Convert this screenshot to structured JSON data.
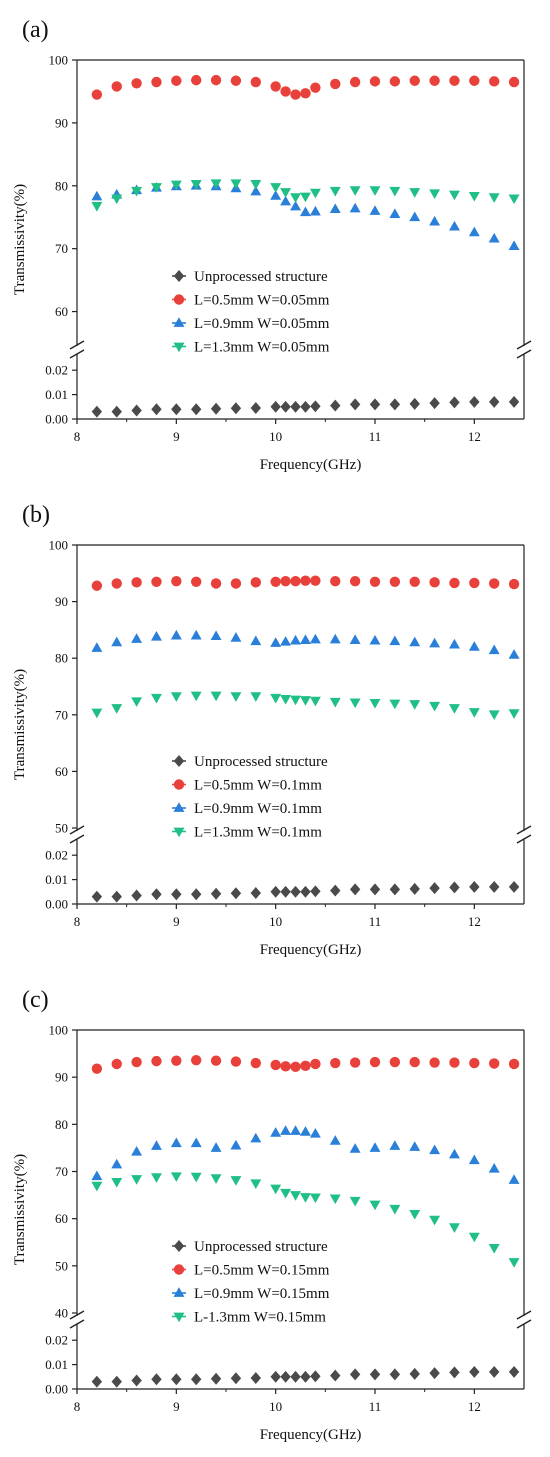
{
  "chart_data": [
    {
      "type": "scatter",
      "panel_label": "(a)",
      "xlabel": "Frequency(GHz)",
      "ylabel": "Transmissivity(%)",
      "xlim": [
        8,
        12.5
      ],
      "x_ticks": [
        "8",
        "9",
        "10",
        "11",
        "12"
      ],
      "y_upper_range": [
        55,
        100
      ],
      "y_upper_ticks": [
        "60",
        "70",
        "80",
        "90",
        "100"
      ],
      "y_lower_range": [
        0,
        0.025
      ],
      "y_lower_ticks": [
        "0.00",
        "0.01",
        "0.02"
      ],
      "axis_break": true,
      "legend_position": "lower-center",
      "x": [
        8.2,
        8.4,
        8.6,
        8.8,
        9.0,
        9.2,
        9.4,
        9.6,
        9.8,
        10.0,
        10.1,
        10.2,
        10.3,
        10.4,
        10.6,
        10.8,
        11.0,
        11.2,
        11.4,
        11.6,
        11.8,
        12.0,
        12.2,
        12.4
      ],
      "series": [
        {
          "name": "Unprocessed structure",
          "marker": "diamond",
          "color": "#4a4a4a",
          "values": [
            0.003,
            0.003,
            0.0035,
            0.004,
            0.004,
            0.004,
            0.0042,
            0.0044,
            0.0045,
            0.005,
            0.005,
            0.005,
            0.005,
            0.0052,
            0.0055,
            0.006,
            0.006,
            0.006,
            0.0062,
            0.0065,
            0.0068,
            0.007,
            0.007,
            0.007
          ]
        },
        {
          "name": "L=0.5mm W=0.05mm",
          "marker": "circle",
          "color": "#e8403a",
          "values": [
            94.5,
            95.8,
            96.3,
            96.5,
            96.7,
            96.8,
            96.8,
            96.7,
            96.5,
            95.8,
            95.0,
            94.5,
            94.7,
            95.6,
            96.2,
            96.5,
            96.6,
            96.6,
            96.7,
            96.7,
            96.7,
            96.7,
            96.6,
            96.5
          ]
        },
        {
          "name": "L=0.9mm W=0.05mm",
          "marker": "triangle-up",
          "color": "#2a7fd8",
          "values": [
            78.3,
            78.6,
            79.3,
            79.7,
            79.9,
            80.0,
            79.9,
            79.6,
            79.1,
            78.4,
            77.5,
            76.7,
            75.8,
            75.9,
            76.3,
            76.4,
            76.0,
            75.5,
            75.0,
            74.3,
            73.5,
            72.6,
            71.6,
            70.4
          ]
        },
        {
          "name": "L=1.3mm W=0.05mm",
          "marker": "triangle-down",
          "color": "#1fbf86",
          "values": [
            76.8,
            78.0,
            79.2,
            79.8,
            80.2,
            80.3,
            80.4,
            80.4,
            80.3,
            79.8,
            79.0,
            78.2,
            78.3,
            78.9,
            79.2,
            79.3,
            79.3,
            79.2,
            79.0,
            78.8,
            78.6,
            78.4,
            78.2,
            78.0
          ]
        }
      ]
    },
    {
      "type": "scatter",
      "panel_label": "(b)",
      "xlabel": "Frequency(GHz)",
      "ylabel": "Transmissivity(%)",
      "xlim": [
        8,
        12.5
      ],
      "x_ticks": [
        "8",
        "9",
        "10",
        "11",
        "12"
      ],
      "y_upper_range": [
        50,
        100
      ],
      "y_upper_ticks": [
        "50",
        "60",
        "70",
        "80",
        "90",
        "100"
      ],
      "y_lower_range": [
        0,
        0.025
      ],
      "y_lower_ticks": [
        "0.00",
        "0.01",
        "0.02"
      ],
      "axis_break": true,
      "legend_position": "lower-center",
      "x": [
        8.2,
        8.4,
        8.6,
        8.8,
        9.0,
        9.2,
        9.4,
        9.6,
        9.8,
        10.0,
        10.1,
        10.2,
        10.3,
        10.4,
        10.6,
        10.8,
        11.0,
        11.2,
        11.4,
        11.6,
        11.8,
        12.0,
        12.2,
        12.4
      ],
      "series": [
        {
          "name": "Unprocessed structure",
          "marker": "diamond",
          "color": "#4a4a4a",
          "values": [
            0.003,
            0.003,
            0.0035,
            0.004,
            0.004,
            0.004,
            0.0042,
            0.0044,
            0.0045,
            0.005,
            0.005,
            0.005,
            0.005,
            0.0052,
            0.0055,
            0.006,
            0.006,
            0.006,
            0.0062,
            0.0065,
            0.0068,
            0.007,
            0.007,
            0.007
          ]
        },
        {
          "name": "L=0.5mm W=0.1mm",
          "marker": "circle",
          "color": "#e8403a",
          "values": [
            92.8,
            93.2,
            93.4,
            93.5,
            93.6,
            93.5,
            93.2,
            93.2,
            93.4,
            93.5,
            93.6,
            93.6,
            93.7,
            93.7,
            93.6,
            93.6,
            93.5,
            93.5,
            93.5,
            93.4,
            93.3,
            93.3,
            93.2,
            93.1
          ]
        },
        {
          "name": "L=0.9mm W=0.1mm",
          "marker": "triangle-up",
          "color": "#2a7fd8",
          "values": [
            81.8,
            82.8,
            83.4,
            83.8,
            84.0,
            84.0,
            83.9,
            83.6,
            83.0,
            82.7,
            82.9,
            83.1,
            83.2,
            83.3,
            83.3,
            83.2,
            83.1,
            83.0,
            82.8,
            82.6,
            82.4,
            82.0,
            81.4,
            80.6
          ]
        },
        {
          "name": "L=1.3mm W=0.1mm",
          "marker": "triangle-down",
          "color": "#1fbf86",
          "values": [
            70.4,
            71.2,
            72.4,
            73.0,
            73.3,
            73.4,
            73.4,
            73.3,
            73.3,
            73.0,
            72.8,
            72.7,
            72.6,
            72.5,
            72.3,
            72.2,
            72.1,
            72.0,
            71.9,
            71.6,
            71.2,
            70.5,
            70.1,
            70.3
          ]
        }
      ]
    },
    {
      "type": "scatter",
      "panel_label": "(c)",
      "xlabel": "Frequency(GHz)",
      "ylabel": "Transmissivity(%)",
      "xlim": [
        8,
        12.5
      ],
      "x_ticks": [
        "8",
        "9",
        "10",
        "11",
        "12"
      ],
      "y_upper_range": [
        40,
        100
      ],
      "y_upper_ticks": [
        "40",
        "50",
        "60",
        "70",
        "80",
        "90",
        "100"
      ],
      "y_lower_range": [
        0,
        0.025
      ],
      "y_lower_ticks": [
        "0.00",
        "0.01",
        "0.02"
      ],
      "axis_break": true,
      "legend_position": "lower-center",
      "x": [
        8.2,
        8.4,
        8.6,
        8.8,
        9.0,
        9.2,
        9.4,
        9.6,
        9.8,
        10.0,
        10.1,
        10.2,
        10.3,
        10.4,
        10.6,
        10.8,
        11.0,
        11.2,
        11.4,
        11.6,
        11.8,
        12.0,
        12.2,
        12.4
      ],
      "series": [
        {
          "name": "Unprocessed structure",
          "marker": "diamond",
          "color": "#4a4a4a",
          "values": [
            0.003,
            0.003,
            0.0035,
            0.004,
            0.004,
            0.004,
            0.0042,
            0.0044,
            0.0045,
            0.005,
            0.005,
            0.005,
            0.005,
            0.0052,
            0.0055,
            0.006,
            0.006,
            0.006,
            0.0062,
            0.0065,
            0.0068,
            0.007,
            0.007,
            0.007
          ]
        },
        {
          "name": "L=0.5mm W=0.15mm",
          "marker": "circle",
          "color": "#e8403a",
          "values": [
            91.8,
            92.8,
            93.2,
            93.4,
            93.5,
            93.6,
            93.5,
            93.3,
            93.0,
            92.6,
            92.3,
            92.2,
            92.4,
            92.8,
            93.0,
            93.1,
            93.2,
            93.2,
            93.2,
            93.1,
            93.1,
            93.0,
            92.9,
            92.8
          ]
        },
        {
          "name": "L=0.9mm W=0.15mm",
          "marker": "triangle-up",
          "color": "#2a7fd8",
          "values": [
            69.0,
            71.5,
            74.2,
            75.4,
            76.0,
            76.0,
            75.0,
            75.5,
            77.0,
            78.2,
            78.6,
            78.6,
            78.4,
            78.0,
            76.5,
            74.8,
            75.0,
            75.4,
            75.2,
            74.5,
            73.6,
            72.4,
            70.6,
            68.2
          ]
        },
        {
          "name": "L-1.3mm W=0.15mm",
          "marker": "triangle-down",
          "color": "#1fbf86",
          "values": [
            67.0,
            67.8,
            68.4,
            68.8,
            69.0,
            68.9,
            68.6,
            68.2,
            67.5,
            66.4,
            65.5,
            65.0,
            64.6,
            64.5,
            64.3,
            63.8,
            63.0,
            62.1,
            61.0,
            59.8,
            58.2,
            56.2,
            53.8,
            50.8
          ]
        }
      ]
    }
  ]
}
